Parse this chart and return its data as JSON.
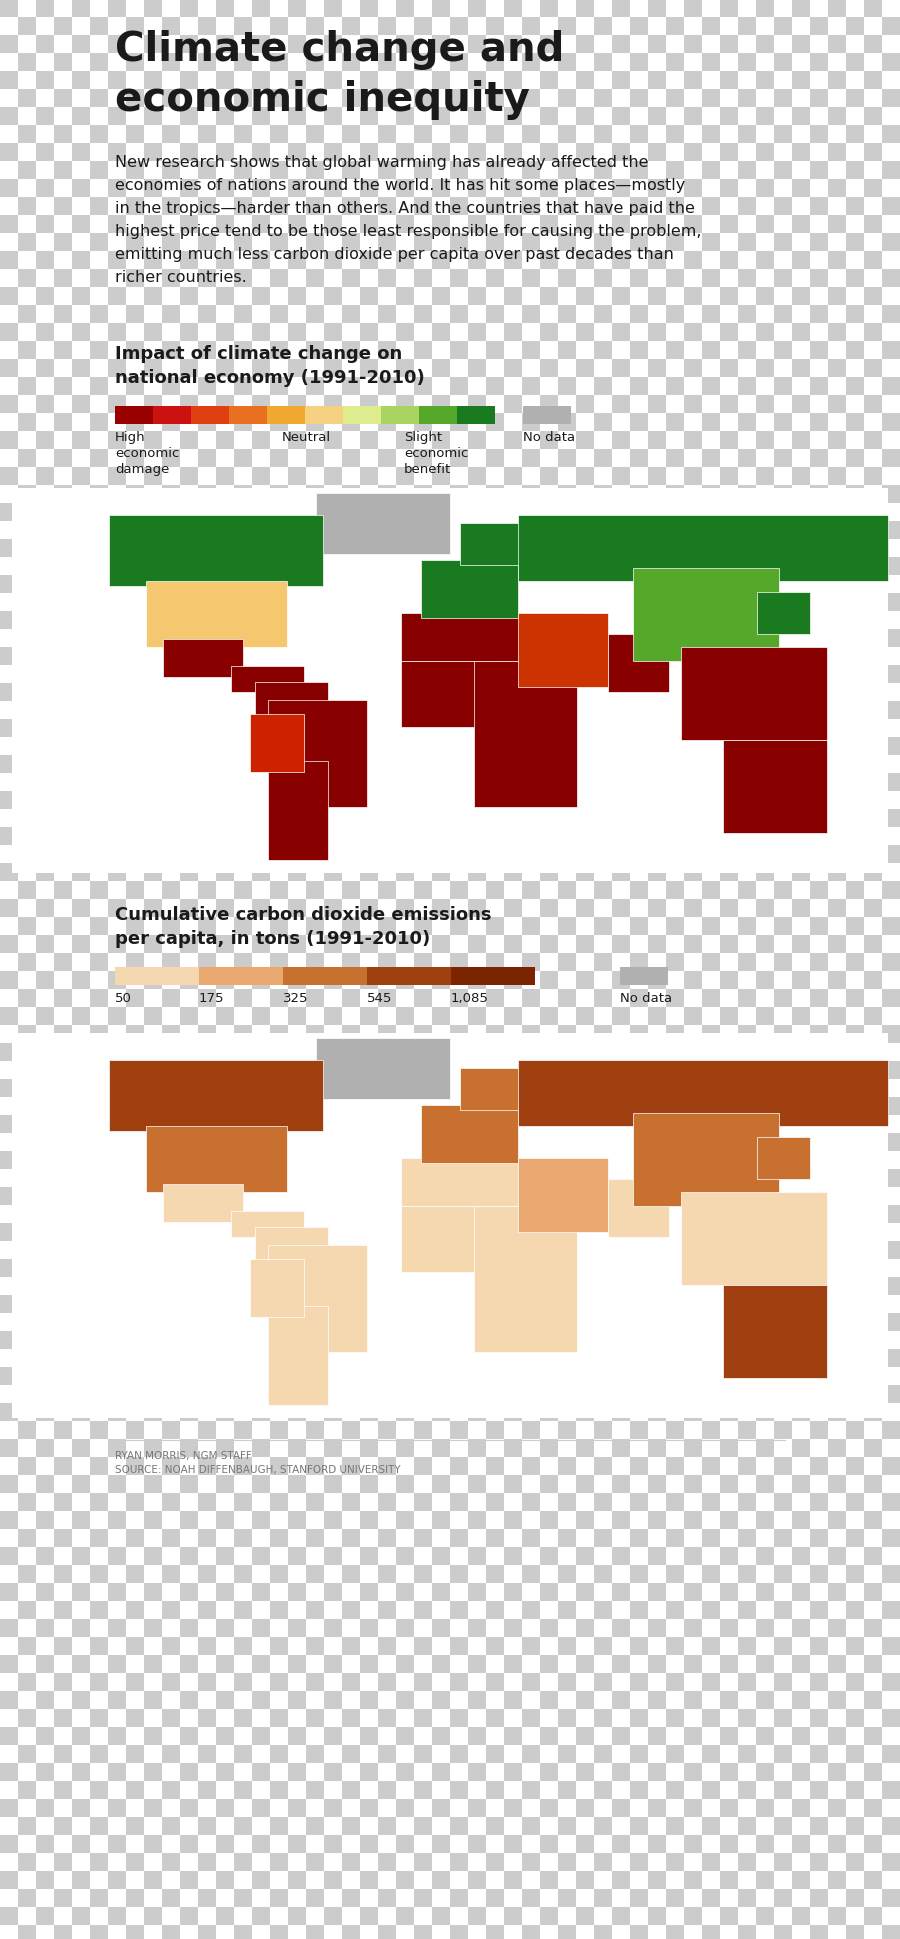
{
  "title_line1": "Climate change and",
  "title_line2": "economic inequity",
  "body_lines": [
    "New research shows that global warming has already affected the",
    "economies of nations around the world. It has hit some places—mostly",
    "in the tropics—harder than others. And the countries that have paid the",
    "highest price tend to be those least responsible for causing the problem,",
    "emitting much less carbon dioxide per capita over past decades than",
    "richer countries."
  ],
  "map1_title_line1": "Impact of climate change on",
  "map1_title_line2": "national economy (1991-2010)",
  "map1_colors": [
    "#990000",
    "#cc1111",
    "#e04010",
    "#e87020",
    "#f0a830",
    "#f5d080",
    "#e0ec90",
    "#aad460",
    "#55a82a",
    "#1a7a20"
  ],
  "map1_nodata_color": "#b0b0b0",
  "map1_label_left": "High\neconomic\ndamage",
  "map1_label_mid": "Neutral",
  "map1_label_right": "Slight\neconomic\nbenefit",
  "map1_label_nodata": "No data",
  "map2_title_line1": "Cumulative carbon dioxide emissions",
  "map2_title_line2": "per capita, in tons (1991-2010)",
  "map2_colors": [
    "#f5d8b0",
    "#e8a870",
    "#c87030",
    "#a04010",
    "#7a2500"
  ],
  "map2_nodata_color": "#b0b0b0",
  "map2_ticks": [
    "50",
    "175",
    "325",
    "545",
    "1,085"
  ],
  "credit": "RYAN MORRIS, NGM STAFF\nSOURCE: NOAH DIFFENBAUGH, STANFORD UNIVERSITY",
  "text_dark": "#1a1a1a",
  "text_gray": "#777777"
}
